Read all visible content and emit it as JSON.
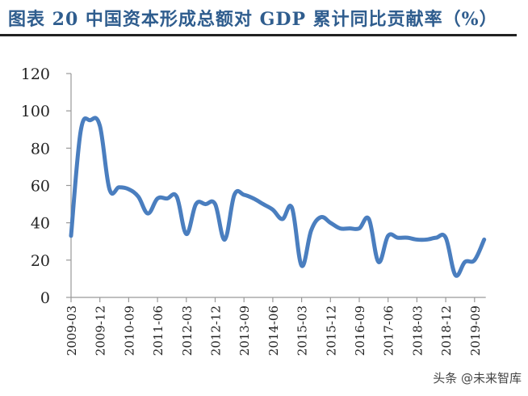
{
  "title": "图表 20 中国资本形成总额对 GDP 累计同比贡献率（%）",
  "watermark": "头条 @未来智库",
  "colors": {
    "line": "#4a7ebf",
    "title": "#2f5d8e",
    "axis": "#999999"
  },
  "chart_data": {
    "type": "line",
    "title": "中国资本形成总额对 GDP 累计同比贡献率（%）",
    "xlabel": "",
    "ylabel": "",
    "ylim": [
      0,
      120
    ],
    "yticks": [
      0,
      20,
      40,
      60,
      80,
      100,
      120
    ],
    "xtick_labels": [
      "2009-03",
      "2009-12",
      "2010-09",
      "2011-06",
      "2012-03",
      "2012-12",
      "2013-09",
      "2014-06",
      "2015-03",
      "2015-12",
      "2016-09",
      "2017-06",
      "2018-03",
      "2018-12",
      "2019-09"
    ],
    "grid": false,
    "legend": null,
    "x": [
      "2009-03",
      "2009-06",
      "2009-09",
      "2009-12",
      "2010-03",
      "2010-06",
      "2010-09",
      "2010-12",
      "2011-03",
      "2011-06",
      "2011-09",
      "2011-12",
      "2012-03",
      "2012-06",
      "2012-09",
      "2012-12",
      "2013-03",
      "2013-06",
      "2013-09",
      "2013-12",
      "2014-03",
      "2014-06",
      "2014-09",
      "2014-12",
      "2015-03",
      "2015-06",
      "2015-09",
      "2015-12",
      "2016-03",
      "2016-06",
      "2016-09",
      "2016-12",
      "2017-03",
      "2017-06",
      "2017-09",
      "2017-12",
      "2018-03",
      "2018-06",
      "2018-09",
      "2018-12",
      "2019-03",
      "2019-06",
      "2019-09",
      "2019-12"
    ],
    "series": [
      {
        "name": "资本形成总额对GDP累计同比贡献率",
        "values": [
          33,
          89,
          95,
          92,
          58,
          59,
          58,
          54,
          45,
          53,
          53,
          54,
          34,
          50,
          50,
          50,
          31,
          55,
          55,
          53,
          50,
          47,
          42,
          48,
          17,
          36,
          43,
          40,
          37,
          37,
          37,
          42,
          19,
          33,
          32,
          32,
          31,
          31,
          32,
          32,
          12,
          19,
          20,
          31
        ]
      }
    ]
  }
}
